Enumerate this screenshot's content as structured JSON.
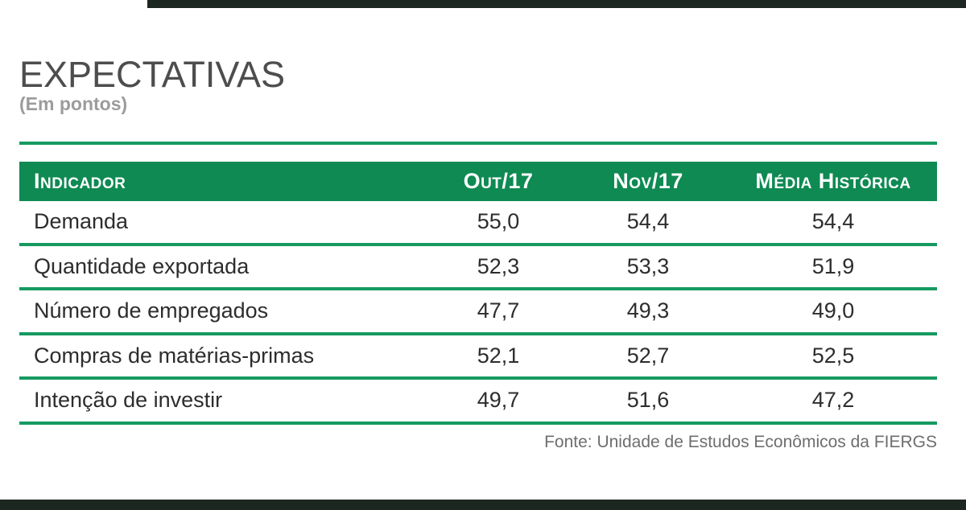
{
  "header": {
    "title": "EXPECTATIVAS",
    "subtitle": "(Em pontos)"
  },
  "table": {
    "columns": [
      "Indicador",
      "Out/17",
      "Nov/17",
      "Média Histórica"
    ],
    "rows": [
      [
        "Demanda",
        "55,0",
        "54,4",
        "54,4"
      ],
      [
        "Quantidade exportada",
        "52,3",
        "53,3",
        "51,9"
      ],
      [
        "Número de empregados",
        "47,7",
        "49,3",
        "49,0"
      ],
      [
        "Compras de matérias-primas",
        "52,1",
        "52,7",
        "52,5"
      ],
      [
        "Intenção de investir",
        "49,7",
        "51,6",
        "47,2"
      ]
    ]
  },
  "footer": {
    "source": "Fonte: Unidade de Estudos Econômicos da FIERGS"
  },
  "colors": {
    "header_green": "#0E8A52",
    "line_green": "#169A60",
    "dark_bar": "#1D2721",
    "title_gray": "#4D4D4D",
    "subtitle_gray": "#9C9C9C",
    "text_dark": "#2D2D2D",
    "source_gray": "#6E6E6E"
  },
  "chart_data": {
    "type": "table",
    "title": "EXPECTATIVAS",
    "unit_note": "(Em pontos)",
    "columns": [
      "Indicador",
      "Out/17",
      "Nov/17",
      "Média Histórica"
    ],
    "rows": [
      {
        "indicador": "Demanda",
        "out_17": 55.0,
        "nov_17": 54.4,
        "media_historica": 54.4
      },
      {
        "indicador": "Quantidade exportada",
        "out_17": 52.3,
        "nov_17": 53.3,
        "media_historica": 51.9
      },
      {
        "indicador": "Número de empregados",
        "out_17": 47.7,
        "nov_17": 49.3,
        "media_historica": 49.0
      },
      {
        "indicador": "Compras de matérias-primas",
        "out_17": 52.1,
        "nov_17": 52.7,
        "media_historica": 52.5
      },
      {
        "indicador": "Intenção de investir",
        "out_17": 49.7,
        "nov_17": 51.6,
        "media_historica": 47.2
      }
    ],
    "decimal_separator": ",",
    "source": "Fonte: Unidade de Estudos Econômicos da FIERGS"
  }
}
